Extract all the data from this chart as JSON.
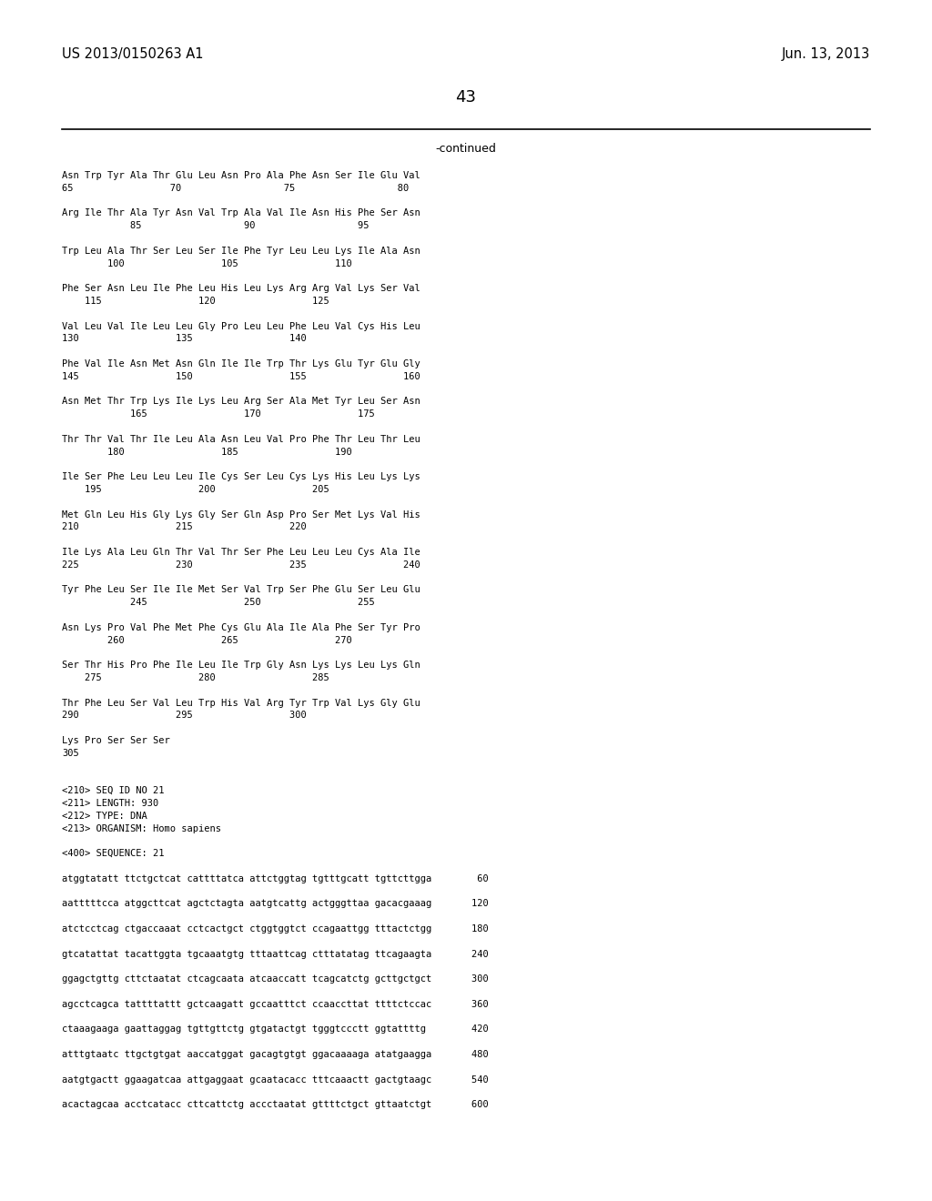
{
  "header_left": "US 2013/0150263 A1",
  "header_right": "Jun. 13, 2013",
  "page_number": "43",
  "continued_label": "-continued",
  "background_color": "#ffffff",
  "text_color": "#000000",
  "body_lines_actual": [
    "Asn Trp Tyr Ala Thr Glu Leu Asn Pro Ala Phe Asn Ser Ile Glu Val",
    "65                 70                  75                  80",
    "",
    "Arg Ile Thr Ala Tyr Asn Val Trp Ala Val Ile Asn His Phe Ser Asn",
    "            85                  90                  95",
    "",
    "Trp Leu Ala Thr Ser Leu Ser Ile Phe Tyr Leu Leu Lys Ile Ala Asn",
    "        100                 105                 110",
    "",
    "Phe Ser Asn Leu Ile Phe Leu His Leu Lys Arg Arg Val Lys Ser Val",
    "    115                 120                 125",
    "",
    "Val Leu Val Ile Leu Leu Gly Pro Leu Leu Phe Leu Val Cys His Leu",
    "130                 135                 140",
    "",
    "Phe Val Ile Asn Met Asn Gln Ile Ile Trp Thr Lys Glu Tyr Glu Gly",
    "145                 150                 155                 160",
    "",
    "Asn Met Thr Trp Lys Ile Lys Leu Arg Ser Ala Met Tyr Leu Ser Asn",
    "            165                 170                 175",
    "",
    "Thr Thr Val Thr Ile Leu Ala Asn Leu Val Pro Phe Thr Leu Thr Leu",
    "        180                 185                 190",
    "",
    "Ile Ser Phe Leu Leu Leu Ile Cys Ser Leu Cys Lys His Leu Lys Lys",
    "    195                 200                 205",
    "",
    "Met Gln Leu His Gly Lys Gly Ser Gln Asp Pro Ser Met Lys Val His",
    "210                 215                 220",
    "",
    "Ile Lys Ala Leu Gln Thr Val Thr Ser Phe Leu Leu Leu Cys Ala Ile",
    "225                 230                 235                 240",
    "",
    "Tyr Phe Leu Ser Ile Ile Met Ser Val Trp Ser Phe Glu Ser Leu Glu",
    "            245                 250                 255",
    "",
    "Asn Lys Pro Val Phe Met Phe Cys Glu Ala Ile Ala Phe Ser Tyr Pro",
    "        260                 265                 270",
    "",
    "Ser Thr His Pro Phe Ile Leu Ile Trp Gly Asn Lys Lys Leu Lys Gln",
    "    275                 280                 285",
    "",
    "Thr Phe Leu Ser Val Leu Trp His Val Arg Tyr Trp Val Lys Gly Glu",
    "290                 295                 300",
    "",
    "Lys Pro Ser Ser Ser",
    "305",
    "",
    "",
    "<210> SEQ ID NO 21",
    "<211> LENGTH: 930",
    "<212> TYPE: DNA",
    "<213> ORGANISM: Homo sapiens",
    "",
    "<400> SEQUENCE: 21",
    "",
    "atggtatatt ttctgctcat cattttatca attctggtag tgtttgcatt tgttcttgga        60",
    "",
    "aatttttcca atggcttcat agctctagta aatgtcattg actgggttaa gacacgaaag       120",
    "",
    "atctcctcag ctgaccaaat cctcactgct ctggtggtct ccagaattgg tttactctgg       180",
    "",
    "gtcatattat tacattggta tgcaaatgtg tttaattcag ctttatatag ttcagaagta       240",
    "",
    "ggagctgttg cttctaatat ctcagcaata atcaaccatt tcagcatctg gcttgctgct       300",
    "",
    "agcctcagca tattttattt gctcaagatt gccaatttct ccaaccttat ttttctccac       360",
    "",
    "ctaaagaaga gaattaggag tgttgttctg gtgatactgt tgggtccctt ggtattttg        420",
    "",
    "atttgtaatc ttgctgtgat aaccatggat gacagtgtgt ggacaaaaga atatgaagga       480",
    "",
    "aatgtgactt ggaagatcaa attgaggaat gcaatacacc tttcaaactt gactgtaagc       540",
    "",
    "acactagcaa acctcatacc cttcattctg accctaatat gttttctgct gttaatctgt       600"
  ]
}
